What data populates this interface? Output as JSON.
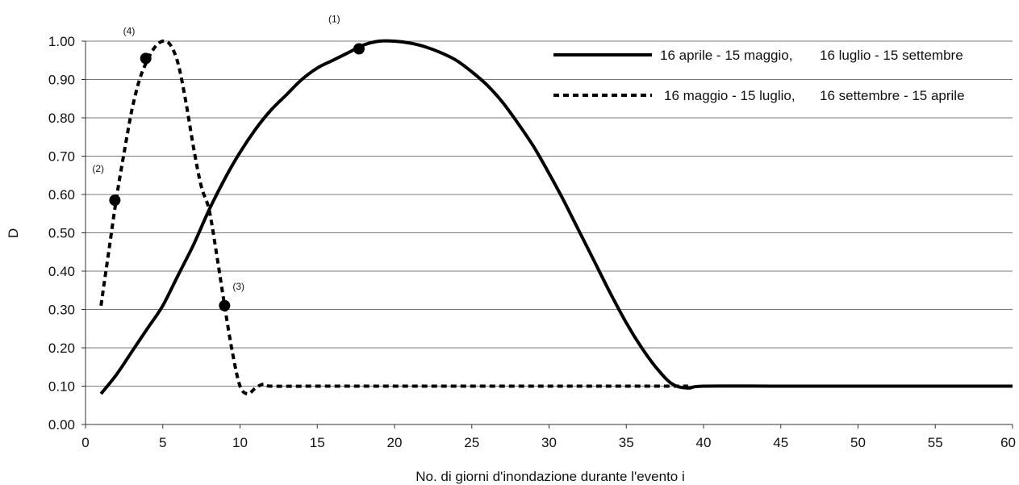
{
  "chart_data": {
    "type": "line",
    "title": "",
    "xlabel": "No. di giorni d'inondazione durante l'evento i",
    "ylabel": "D",
    "xlim": [
      0,
      60
    ],
    "ylim": [
      0,
      1
    ],
    "x_ticks": [
      0,
      5,
      10,
      15,
      20,
      25,
      30,
      35,
      40,
      45,
      50,
      55,
      60
    ],
    "x_tick_labels": [
      "0",
      "5",
      "10",
      "15",
      "20",
      "25",
      "30",
      "35",
      "40",
      "45",
      "50",
      "55",
      "60"
    ],
    "y_ticks": [
      0,
      0.1,
      0.2,
      0.3,
      0.4,
      0.5,
      0.6,
      0.7,
      0.8,
      0.9,
      1.0
    ],
    "y_tick_labels": [
      "0.00",
      "0.10",
      "0.20",
      "0.30",
      "0.40",
      "0.50",
      "0.60",
      "0.70",
      "0.80",
      "0.90",
      "1.00"
    ],
    "grid": "horizontal",
    "legend_position": "top-right",
    "series": [
      {
        "label_a": "16 aprile - 15 maggio,",
        "label_b": "16 luglio - 15 settembre",
        "style": "solid",
        "color": "#000000",
        "points": [
          [
            1,
            0.08
          ],
          [
            2,
            0.13
          ],
          [
            3,
            0.19
          ],
          [
            4,
            0.25
          ],
          [
            5,
            0.31
          ],
          [
            6,
            0.39
          ],
          [
            7,
            0.47
          ],
          [
            8,
            0.56
          ],
          [
            9,
            0.64
          ],
          [
            10,
            0.71
          ],
          [
            11,
            0.77
          ],
          [
            12,
            0.82
          ],
          [
            13,
            0.86
          ],
          [
            14,
            0.9
          ],
          [
            15,
            0.93
          ],
          [
            16,
            0.95
          ],
          [
            17,
            0.97
          ],
          [
            18,
            0.99
          ],
          [
            19,
            1.0
          ],
          [
            20,
            1.0
          ],
          [
            21,
            0.995
          ],
          [
            22,
            0.985
          ],
          [
            23,
            0.97
          ],
          [
            24,
            0.95
          ],
          [
            25,
            0.92
          ],
          [
            26,
            0.885
          ],
          [
            27,
            0.84
          ],
          [
            28,
            0.785
          ],
          [
            29,
            0.725
          ],
          [
            30,
            0.655
          ],
          [
            31,
            0.58
          ],
          [
            32,
            0.5
          ],
          [
            33,
            0.42
          ],
          [
            34,
            0.34
          ],
          [
            35,
            0.265
          ],
          [
            36,
            0.2
          ],
          [
            37,
            0.145
          ],
          [
            38,
            0.105
          ],
          [
            39,
            0.095
          ],
          [
            40,
            0.1
          ],
          [
            45,
            0.1
          ],
          [
            50,
            0.1
          ],
          [
            55,
            0.1
          ],
          [
            60,
            0.1
          ]
        ]
      },
      {
        "label_a": "16 maggio - 15 luglio,",
        "label_b": "16 settembre - 15 aprile",
        "style": "dashed",
        "color": "#000000",
        "points": [
          [
            1,
            0.31
          ],
          [
            1.5,
            0.45
          ],
          [
            2,
            0.59
          ],
          [
            2.5,
            0.71
          ],
          [
            3,
            0.82
          ],
          [
            3.5,
            0.9
          ],
          [
            4,
            0.95
          ],
          [
            4.5,
            0.985
          ],
          [
            5,
            1.0
          ],
          [
            5.5,
            0.99
          ],
          [
            6,
            0.94
          ],
          [
            6.5,
            0.84
          ],
          [
            7,
            0.72
          ],
          [
            7.5,
            0.62
          ],
          [
            8,
            0.56
          ],
          [
            8.5,
            0.44
          ],
          [
            9,
            0.31
          ],
          [
            9.5,
            0.19
          ],
          [
            10,
            0.1
          ],
          [
            10.5,
            0.08
          ],
          [
            11,
            0.095
          ],
          [
            11.5,
            0.105
          ],
          [
            12,
            0.1
          ],
          [
            15,
            0.1
          ],
          [
            20,
            0.1
          ],
          [
            25,
            0.1
          ],
          [
            30,
            0.1
          ],
          [
            35,
            0.1
          ],
          [
            39,
            0.1
          ]
        ]
      }
    ],
    "markers": [
      {
        "label": "(1)",
        "x": 17.7,
        "y": 0.98
      },
      {
        "label": "(2)",
        "x": 1.9,
        "y": 0.585
      },
      {
        "label": "(3)",
        "x": 9,
        "y": 0.31
      },
      {
        "label": "(4)",
        "x": 3.9,
        "y": 0.955
      }
    ]
  }
}
